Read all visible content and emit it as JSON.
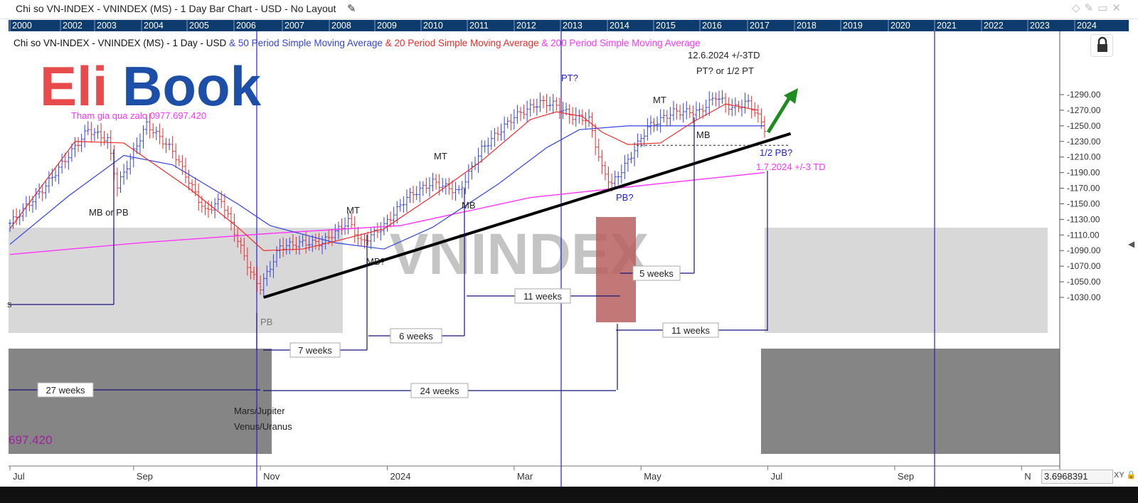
{
  "window": {
    "title": "Chi so VN-INDEX - VNINDEX (MS) - 1 Day Bar Chart - USD - No Layout",
    "pen_icon": "pen-icon",
    "controls": [
      "diamond-icon",
      "pin-icon",
      "restore-icon",
      "close-icon"
    ]
  },
  "navigator": {
    "years": [
      "2000",
      "2002",
      "2003",
      "2004",
      "2005",
      "2006",
      "2007",
      "2008",
      "2009",
      "2010",
      "2011",
      "2012",
      "2013",
      "2014",
      "2015",
      "2016",
      "2017",
      "2018",
      "2019",
      "2020",
      "2021",
      "2022",
      "2023",
      "2024"
    ]
  },
  "legend": {
    "prefix": "Chi so VN-INDEX - VNINDEX (MS) - 1 Day - USD",
    "ma50": "& 50 Period Simple Moving Average",
    "ma20": "& 20 Period Simple Moving Average",
    "ma200": "& 200 Period Simple Moving Average"
  },
  "logo": {
    "text": "EliBook",
    "zalo": "Tham gia qua zalo 0977.697.420",
    "zalo_fragment": "697.420"
  },
  "watermark": "VNINDEX",
  "colors": {
    "ma20": "#ee2b2b",
    "ma50": "#3344dd",
    "ma200": "#ff33ff",
    "annotation": "#15157a",
    "trend": "#000000",
    "arrow": "#1e8c1e",
    "box_light": "#d8d8d8",
    "box_dark": "#858585",
    "box_red": "#b86060",
    "nav": "#0e3b6e"
  },
  "annotations": {
    "pt1": "PT?",
    "pt2_date": "12.6.2024 +/-3TD",
    "pt2": "PT? or 1/2 PT",
    "half_pb": "1/2 PB?",
    "td_date": "1.7.2024 +/-3 TD",
    "pb_q": "PB?",
    "pb": "PB",
    "mb_or_pb": "MB or PB",
    "mt1": "MT",
    "mt2": "MT",
    "mt3": "MT",
    "mb1": "MB",
    "mb2": "MB",
    "mb_q": "MB?",
    "s_frag": "s",
    "w27": "27 weeks",
    "w24": "24 weeks",
    "w7": "7 weeks",
    "w6": "6 weeks",
    "w11a": "11 weeks",
    "w11b": "11 weeks",
    "w5": "5 weeks",
    "planet1": "Mars/Jupiter",
    "planet2": "Venus/Uranus"
  },
  "x_axis": {
    "months": [
      "Jul",
      "Sep",
      "Nov",
      "2024",
      "Mar",
      "May",
      "Jul",
      "Sep",
      "N"
    ]
  },
  "footer": {
    "value": "3.6968391",
    "xy_label": "XY"
  },
  "chart_data": {
    "type": "bar",
    "title": "Chi so VN-INDEX - VNINDEX (MS) - 1 Day Bar Chart - USD",
    "ylabel": "",
    "ylim": [
      1010,
      1310
    ],
    "y_ticks": [
      1290,
      1270,
      1250,
      1230,
      1210,
      1190,
      1170,
      1150,
      1130,
      1110,
      1090,
      1070,
      1050,
      1030
    ],
    "x_ticks": [
      "Jul",
      "Sep",
      "Nov",
      "2024",
      "Mar",
      "May",
      "Jul",
      "Sep",
      "N"
    ],
    "x_tick_idx": [
      0,
      38,
      77,
      116,
      155,
      194,
      233,
      272,
      311
    ],
    "key_points": [
      {
        "idx": 0,
        "price": 1125
      },
      {
        "idx": 10,
        "price": 1168
      },
      {
        "idx": 24,
        "price": 1245
      },
      {
        "idx": 30,
        "price": 1232
      },
      {
        "idx": 33,
        "price": 1172
      },
      {
        "idx": 42,
        "price": 1252
      },
      {
        "idx": 50,
        "price": 1218
      },
      {
        "idx": 60,
        "price": 1140
      },
      {
        "idx": 65,
        "price": 1155
      },
      {
        "idx": 74,
        "price": 1062
      },
      {
        "idx": 77,
        "price": 1043
      },
      {
        "idx": 83,
        "price": 1095
      },
      {
        "idx": 90,
        "price": 1100
      },
      {
        "idx": 96,
        "price": 1100
      },
      {
        "idx": 104,
        "price": 1128
      },
      {
        "idx": 108,
        "price": 1100
      },
      {
        "idx": 115,
        "price": 1122
      },
      {
        "idx": 122,
        "price": 1158
      },
      {
        "idx": 130,
        "price": 1178
      },
      {
        "idx": 138,
        "price": 1165
      },
      {
        "idx": 145,
        "price": 1220
      },
      {
        "idx": 155,
        "price": 1262
      },
      {
        "idx": 163,
        "price": 1280
      },
      {
        "idx": 167,
        "price": 1278
      },
      {
        "idx": 173,
        "price": 1262
      },
      {
        "idx": 178,
        "price": 1258
      },
      {
        "idx": 182,
        "price": 1195
      },
      {
        "idx": 185,
        "price": 1175
      },
      {
        "idx": 190,
        "price": 1205
      },
      {
        "idx": 196,
        "price": 1248
      },
      {
        "idx": 204,
        "price": 1268
      },
      {
        "idx": 212,
        "price": 1268
      },
      {
        "idx": 217,
        "price": 1288
      },
      {
        "idx": 222,
        "price": 1272
      },
      {
        "idx": 227,
        "price": 1280
      },
      {
        "idx": 231,
        "price": 1255
      },
      {
        "idx": 232,
        "price": 1243
      }
    ],
    "ma20_points": [
      [
        0,
        1118
      ],
      [
        20,
        1230
      ],
      [
        35,
        1228
      ],
      [
        55,
        1170
      ],
      [
        70,
        1120
      ],
      [
        78,
        1090
      ],
      [
        90,
        1092
      ],
      [
        100,
        1102
      ],
      [
        115,
        1118
      ],
      [
        130,
        1160
      ],
      [
        145,
        1205
      ],
      [
        160,
        1258
      ],
      [
        168,
        1268
      ],
      [
        176,
        1262
      ],
      [
        182,
        1242
      ],
      [
        190,
        1226
      ],
      [
        200,
        1228
      ],
      [
        210,
        1255
      ],
      [
        220,
        1278
      ],
      [
        230,
        1270
      ]
    ],
    "ma50_points": [
      [
        0,
        1098
      ],
      [
        18,
        1160
      ],
      [
        35,
        1212
      ],
      [
        50,
        1200
      ],
      [
        70,
        1150
      ],
      [
        80,
        1122
      ],
      [
        100,
        1100
      ],
      [
        115,
        1092
      ],
      [
        130,
        1120
      ],
      [
        150,
        1175
      ],
      [
        165,
        1222
      ],
      [
        175,
        1245
      ],
      [
        190,
        1250
      ],
      [
        210,
        1250
      ],
      [
        232,
        1250
      ]
    ],
    "ma200_points": [
      [
        0,
        1085
      ],
      [
        40,
        1100
      ],
      [
        80,
        1112
      ],
      [
        120,
        1122
      ],
      [
        160,
        1158
      ],
      [
        200,
        1176
      ],
      [
        232,
        1190
      ]
    ],
    "trendline": [
      [
        78,
        1030
      ],
      [
        240,
        1240
      ]
    ],
    "support_level": 1225
  }
}
